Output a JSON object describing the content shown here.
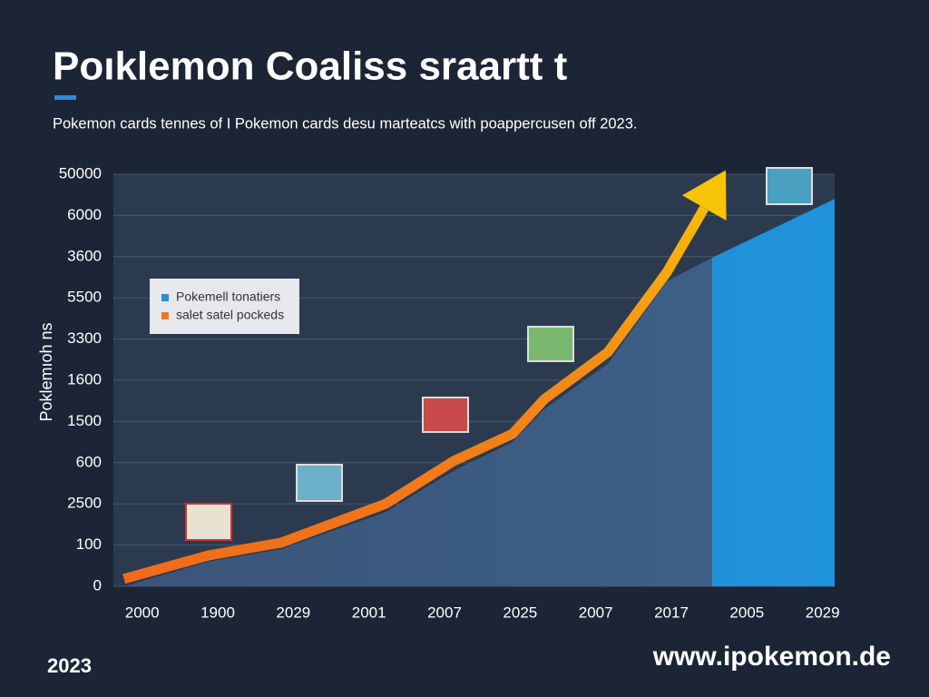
{
  "chart_data": {
    "type": "line",
    "title": "Poıklemon Coaliss sraartt t",
    "subtitle": "Pokemon cards tennes of I Pokemon cards desu marteatcs with poappercusen off 2023.",
    "y_label": "Poklemıoh ns",
    "categories": [
      "2000",
      "1900",
      "2029",
      "2001",
      "2007",
      "2025",
      "2007",
      "2017",
      "2005",
      "2029"
    ],
    "xlim": [
      -0.38,
      9.16
    ],
    "ylim": [
      0,
      10
    ],
    "yticks": [
      0,
      {
        "value": 1,
        "label": "100"
      },
      {
        "value": 2,
        "label": "2500"
      },
      {
        "value": 3,
        "label": "600"
      },
      {
        "value": 4,
        "label": "1500"
      },
      {
        "value": 5,
        "label": "1600"
      },
      {
        "value": 6,
        "label": "3300"
      },
      {
        "value": 7,
        "label": "5500"
      },
      {
        "value": 8,
        "label": "3600"
      },
      {
        "value": 9,
        "label": "6000"
      },
      {
        "value": 10,
        "label": "50000"
      }
    ],
    "grid": true,
    "legend_position": "upper left",
    "series": [
      {
        "name": "Pokemell tonatiers",
        "color": "#2a8fd4",
        "kind": "area",
        "x": [
          -0.24,
          0.88,
          1.84,
          3.22,
          4.12,
          4.9,
          5.32,
          6.16,
          6.94,
          7.57,
          9.16
        ],
        "values": [
          0,
          0.6,
          0.9,
          1.8,
          2.8,
          3.5,
          4.3,
          5.4,
          7.4,
          8.0,
          9.4
        ]
      },
      {
        "name": "salet satel pockeds",
        "color": "#f07a1a",
        "kind": "line",
        "x": [
          -0.24,
          0.88,
          1.84,
          3.22,
          4.12,
          4.9,
          5.32,
          6.16,
          6.94,
          7.36,
          7.72
        ],
        "values": [
          0.18,
          0.75,
          1.06,
          2.0,
          3.04,
          3.7,
          4.54,
          5.68,
          7.62,
          8.94,
          10.1
        ]
      }
    ],
    "footer_left": "2023",
    "footer_right": "www.ipokemon.de"
  }
}
